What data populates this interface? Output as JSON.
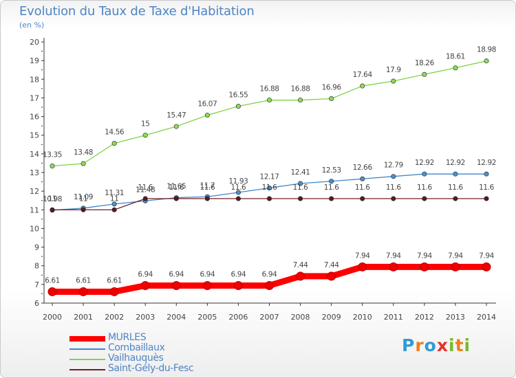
{
  "chart_data": {
    "type": "line",
    "title": "Evolution du Taux de Taxe d'Habitation",
    "subtitle": "(en %)",
    "xlabel": "",
    "ylabel": "",
    "x": [
      2000,
      2001,
      2002,
      2003,
      2004,
      2005,
      2006,
      2007,
      2008,
      2009,
      2010,
      2011,
      2012,
      2013,
      2014
    ],
    "ylim": [
      6,
      20
    ],
    "yticks": [
      6,
      7,
      8,
      9,
      10,
      11,
      12,
      13,
      14,
      15,
      16,
      17,
      18,
      19,
      20
    ],
    "grid": false,
    "legend_position": "bottom-left",
    "series": [
      {
        "name": "MURLES",
        "color": "#ff0000",
        "values": [
          6.61,
          6.61,
          6.61,
          6.94,
          6.94,
          6.94,
          6.94,
          6.94,
          7.44,
          7.44,
          7.94,
          7.94,
          7.94,
          7.94,
          7.94
        ]
      },
      {
        "name": "Combaillaux",
        "color": "#3d85c6",
        "values": [
          10.98,
          11.09,
          11.31,
          11.48,
          11.65,
          11.7,
          11.93,
          12.17,
          12.41,
          12.53,
          12.66,
          12.79,
          12.92,
          12.92,
          12.92
        ]
      },
      {
        "name": "Vailhauquès",
        "color": "#7ed348",
        "values": [
          13.35,
          13.48,
          14.56,
          15,
          15.47,
          16.07,
          16.55,
          16.88,
          16.88,
          16.96,
          17.64,
          17.9,
          18.26,
          18.61,
          18.98
        ]
      },
      {
        "name": "Saint-Gély-du-Fesc",
        "color": "#6d1f28",
        "values": [
          11,
          11,
          11,
          11.6,
          11.6,
          11.6,
          11.6,
          11.6,
          11.6,
          11.6,
          11.6,
          11.6,
          11.6,
          11.6,
          11.6
        ]
      }
    ],
    "data_labels": [
      [
        "6.61",
        "6.61",
        "6.61",
        "6.94",
        "6.94",
        "6.94",
        "6.94",
        "6.94",
        "7.44",
        "7.44",
        "7.94",
        "7.94",
        "7.94",
        "7.94",
        "7.94"
      ],
      [
        "10.98",
        "11.09",
        "11.31",
        "11.48",
        "11.65",
        "11.7",
        "11.93",
        "12.17",
        "12.41",
        "12.53",
        "12.66",
        "12.79",
        "12.92",
        "12.92",
        "12.92"
      ],
      [
        "13.35",
        "13.48",
        "14.56",
        "15",
        "15.47",
        "16.07",
        "16.55",
        "16.88",
        "16.88",
        "16.96",
        "17.64",
        "17.9",
        "18.26",
        "18.61",
        "18.98"
      ],
      [
        "11",
        "11",
        "11",
        "11.6",
        "11.6",
        "11.6",
        "11.6",
        "11.6",
        "11.6",
        "11.6",
        "11.6",
        "11.6",
        "11.6",
        "11.6",
        "11.6"
      ]
    ]
  },
  "logo": {
    "text": "Proxiti",
    "colors": [
      "#2e9bd6",
      "#f07e1b",
      "#2e9bd6",
      "#e2342c",
      "#7cb82f",
      "#f07e1b",
      "#7cb82f"
    ]
  }
}
